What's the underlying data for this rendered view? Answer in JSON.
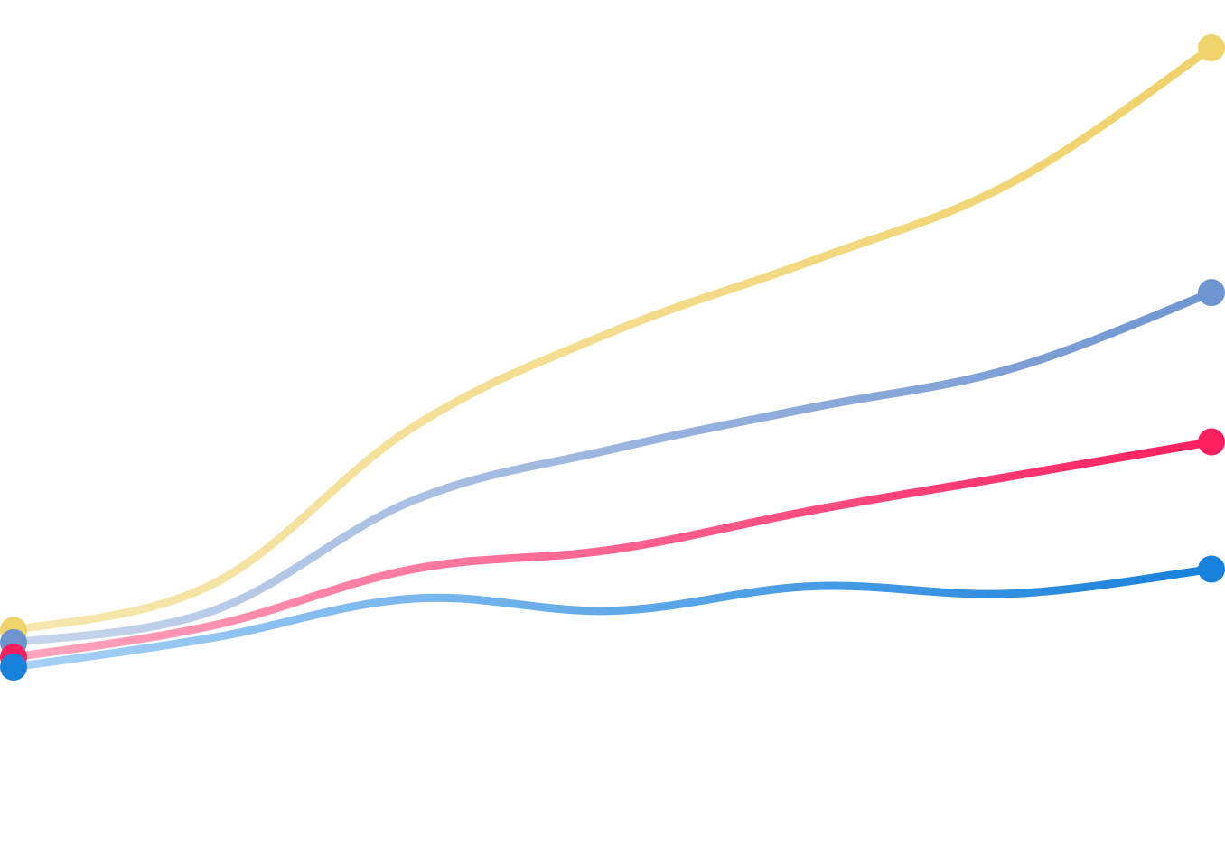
{
  "chart_data": {
    "type": "line",
    "x": [
      0,
      1,
      2,
      3,
      4,
      5,
      6
    ],
    "series": [
      {
        "key": "series_1",
        "color": "#F0D26A",
        "start_color": "#F7E7AF",
        "values": [
          0.5,
          2.4,
          8.8,
          12.7,
          15.6,
          18.8,
          24.3
        ]
      },
      {
        "key": "series_2",
        "color": "#6F95D1",
        "start_color": "#C7D6EC",
        "values": [
          0.0,
          1.3,
          5.8,
          7.9,
          9.6,
          11.2,
          14.3
        ]
      },
      {
        "key": "series_3",
        "color": "#FF1F5F",
        "start_color": "#FFA7C0",
        "values": [
          -0.6,
          0.7,
          3.0,
          3.8,
          5.4,
          6.8,
          8.2
        ]
      },
      {
        "key": "series_4",
        "color": "#1881DB",
        "start_color": "#A9D2F6",
        "values": [
          -1.0,
          0.2,
          1.8,
          1.3,
          2.3,
          2.0,
          3.0
        ]
      }
    ],
    "grid": false,
    "legend": "none"
  }
}
